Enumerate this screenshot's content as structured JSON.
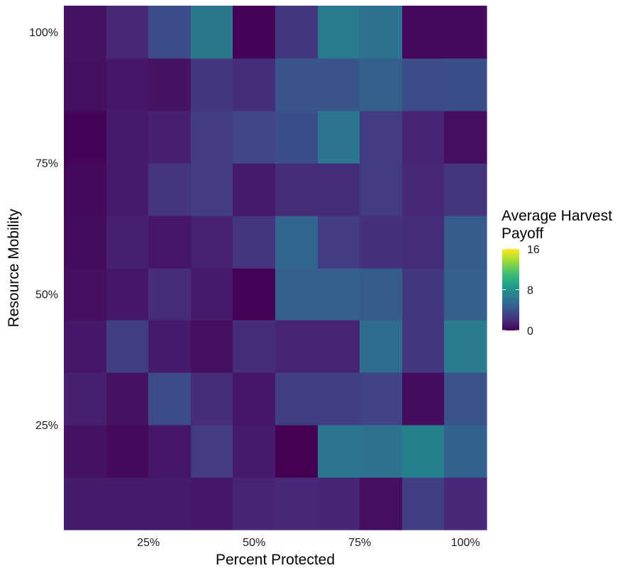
{
  "chart_data": {
    "type": "heatmap",
    "title": "",
    "xlabel": "Percent Protected",
    "ylabel": "Resource Mobility",
    "x_ticks": [
      {
        "value": 0.25,
        "label": "25%"
      },
      {
        "value": 0.5,
        "label": "50%"
      },
      {
        "value": 0.75,
        "label": "75%"
      },
      {
        "value": 1.0,
        "label": "100%"
      }
    ],
    "y_ticks": [
      {
        "value": 0.25,
        "label": "25%"
      },
      {
        "value": 0.5,
        "label": "50%"
      },
      {
        "value": 0.75,
        "label": "75%"
      },
      {
        "value": 1.0,
        "label": "100%"
      }
    ],
    "x_values": [
      0.1,
      0.2,
      0.3,
      0.4,
      0.5,
      0.6,
      0.7,
      0.8,
      0.9,
      1.0
    ],
    "y_values": [
      0.1,
      0.2,
      0.3,
      0.4,
      0.5,
      0.6,
      0.7,
      0.8,
      0.9,
      1.0
    ],
    "xlim": [
      0.05,
      1.05
    ],
    "ylim": [
      0.05,
      1.05
    ],
    "values_by_row_y": [
      [
        1.2,
        1.2,
        1.2,
        1.0,
        1.6,
        1.8,
        1.6,
        0.6,
        3.0,
        1.8
      ],
      [
        0.8,
        0.4,
        1.0,
        2.8,
        1.2,
        0.0,
        6.2,
        6.0,
        7.0,
        5.0
      ],
      [
        1.4,
        0.8,
        3.6,
        2.0,
        1.0,
        3.0,
        3.0,
        3.2,
        0.5,
        4.0
      ],
      [
        1.0,
        3.0,
        1.2,
        0.6,
        2.0,
        1.6,
        1.6,
        5.6,
        2.5,
        6.6
      ],
      [
        0.6,
        1.0,
        2.0,
        1.2,
        0.1,
        4.8,
        4.8,
        4.6,
        2.6,
        4.8
      ],
      [
        0.5,
        1.4,
        1.0,
        1.5,
        2.4,
        5.2,
        2.8,
        2.2,
        2.0,
        4.6
      ],
      [
        0.3,
        1.2,
        2.4,
        2.8,
        1.2,
        2.0,
        2.0,
        2.8,
        1.8,
        2.4
      ],
      [
        0.2,
        1.2,
        1.4,
        2.8,
        3.4,
        3.8,
        6.2,
        2.8,
        1.6,
        0.6
      ],
      [
        0.7,
        1.0,
        0.8,
        2.6,
        2.0,
        4.2,
        4.2,
        4.8,
        3.6,
        3.8
      ],
      [
        0.8,
        1.8,
        3.6,
        6.4,
        0.2,
        2.6,
        6.6,
        6.0,
        0.3,
        0.4
      ]
    ],
    "color_scale": {
      "name": "viridis",
      "min": 0,
      "max": 16,
      "stops": [
        "#440154",
        "#482878",
        "#3e4a89",
        "#31688e",
        "#26828e",
        "#1f9e89",
        "#35b779",
        "#6ece58",
        "#b5de2b",
        "#fde725"
      ]
    },
    "legend": {
      "title_lines": [
        "Average Harvest",
        "Payoff"
      ],
      "breaks": [
        {
          "value": 16,
          "label": "16"
        },
        {
          "value": 8,
          "label": "8"
        },
        {
          "value": 0,
          "label": "0"
        }
      ],
      "position": "right"
    },
    "grid": false
  }
}
